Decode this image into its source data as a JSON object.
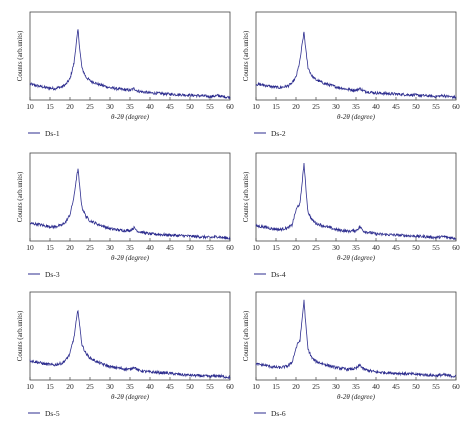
{
  "figure": {
    "colors": {
      "line": "#2e2e8f",
      "axis": "#444444"
    }
  },
  "chart_data": [
    {
      "type": "line",
      "panel": "Ds-1",
      "xlabel": "θ-2θ (degree)",
      "ylabel": "Counts (arb.units)",
      "xlim": [
        10,
        60
      ],
      "xticks": [
        10,
        15,
        20,
        25,
        30,
        35,
        40,
        45,
        50,
        55,
        60
      ],
      "series": [
        {
          "name": "Ds-1",
          "x": [
            10,
            12,
            14,
            16,
            18,
            19,
            20,
            20.5,
            21,
            21.5,
            22,
            22.5,
            23,
            24,
            25,
            27,
            30,
            33,
            35,
            36,
            37,
            40,
            44,
            48,
            52,
            55,
            57,
            58,
            60
          ],
          "y": [
            18,
            16,
            14,
            13,
            15,
            18,
            24,
            33,
            42,
            62,
            80,
            55,
            36,
            26,
            22,
            18,
            14,
            12,
            11,
            13,
            10,
            8,
            7,
            6,
            5,
            4,
            5,
            4,
            3
          ]
        }
      ]
    },
    {
      "type": "line",
      "panel": "Ds-2",
      "xlabel": "θ-2θ (degree)",
      "ylabel": "Counts (arb.units)",
      "xlim": [
        10,
        60
      ],
      "xticks": [
        10,
        15,
        20,
        25,
        30,
        35,
        40,
        45,
        50,
        55,
        60
      ],
      "series": [
        {
          "name": "Ds-2",
          "x": [
            10,
            12,
            14,
            16,
            18,
            19,
            20,
            20.5,
            21,
            21.5,
            22,
            22.5,
            23,
            24,
            25,
            27,
            30,
            33,
            35,
            36,
            37,
            40,
            44,
            48,
            52,
            55,
            57,
            58,
            60
          ],
          "y": [
            18,
            17,
            15,
            14,
            16,
            19,
            26,
            35,
            45,
            62,
            77,
            55,
            37,
            27,
            23,
            19,
            15,
            12,
            11,
            13,
            10,
            8,
            7,
            6,
            5,
            4,
            5,
            4,
            3
          ]
        }
      ]
    },
    {
      "type": "line",
      "panel": "Ds-3",
      "xlabel": "θ-2θ (degree)",
      "ylabel": "Counts (arb.units)",
      "xlim": [
        10,
        60
      ],
      "xticks": [
        10,
        15,
        20,
        25,
        30,
        35,
        40,
        45,
        50,
        55,
        60
      ],
      "series": [
        {
          "name": "Ds-3",
          "x": [
            10,
            12,
            14,
            16,
            18,
            19,
            20,
            20.5,
            21,
            21.5,
            22,
            22.5,
            23,
            24,
            25,
            27,
            30,
            33,
            35,
            36,
            37,
            40,
            44,
            48,
            52,
            55,
            57,
            58,
            60
          ],
          "y": [
            20,
            19,
            17,
            16,
            18,
            22,
            30,
            40,
            50,
            68,
            82,
            58,
            38,
            28,
            23,
            19,
            14,
            12,
            12,
            15,
            11,
            8,
            7,
            6,
            5,
            4,
            5,
            4,
            3
          ]
        }
      ]
    },
    {
      "type": "line",
      "panel": "Ds-4",
      "xlabel": "θ-2θ (degree)",
      "ylabel": "Counts (arb.units)",
      "xlim": [
        10,
        60
      ],
      "xticks": [
        10,
        15,
        20,
        25,
        30,
        35,
        40,
        45,
        50,
        55,
        60
      ],
      "series": [
        {
          "name": "Ds-4",
          "x": [
            10,
            12,
            14,
            16,
            18,
            19,
            20,
            20.5,
            21,
            21.5,
            22,
            22.5,
            23,
            24,
            25,
            27,
            30,
            33,
            35,
            36,
            37,
            40,
            44,
            48,
            52,
            55,
            57,
            58,
            60
          ],
          "y": [
            17,
            16,
            14,
            13,
            15,
            18,
            35,
            40,
            42,
            65,
            88,
            58,
            33,
            24,
            20,
            17,
            13,
            11,
            12,
            16,
            11,
            8,
            7,
            6,
            5,
            4,
            5,
            4,
            3
          ]
        }
      ]
    },
    {
      "type": "line",
      "panel": "Ds-5",
      "xlabel": "θ-2θ (degree)",
      "ylabel": "Counts (arb.units)",
      "xlim": [
        10,
        60
      ],
      "xticks": [
        10,
        15,
        20,
        25,
        30,
        35,
        40,
        45,
        50,
        55,
        60
      ],
      "series": [
        {
          "name": "Ds-5",
          "x": [
            10,
            12,
            14,
            16,
            18,
            19,
            20,
            20.5,
            21,
            21.5,
            22,
            22.5,
            23,
            24,
            25,
            27,
            30,
            33,
            35,
            36,
            37,
            40,
            44,
            48,
            52,
            55,
            57,
            58,
            60
          ],
          "y": [
            22,
            20,
            18,
            17,
            19,
            23,
            30,
            40,
            48,
            65,
            80,
            58,
            40,
            30,
            25,
            20,
            15,
            13,
            12,
            15,
            11,
            9,
            8,
            6,
            5,
            4,
            5,
            4,
            3
          ]
        }
      ]
    },
    {
      "type": "line",
      "panel": "Ds-6",
      "xlabel": "θ-2θ (degree)",
      "ylabel": "Counts (arb.units)",
      "xlim": [
        10,
        60
      ],
      "xticks": [
        10,
        15,
        20,
        25,
        30,
        35,
        40,
        45,
        50,
        55,
        60
      ],
      "series": [
        {
          "name": "Ds-6",
          "x": [
            10,
            12,
            14,
            16,
            18,
            19,
            20,
            20.5,
            21,
            21.5,
            22,
            22.5,
            23,
            24,
            25,
            27,
            30,
            33,
            35,
            36,
            37,
            40,
            44,
            48,
            52,
            55,
            57,
            58,
            60
          ],
          "y": [
            18,
            17,
            15,
            14,
            16,
            20,
            36,
            42,
            45,
            68,
            90,
            60,
            35,
            25,
            21,
            18,
            14,
            12,
            13,
            17,
            12,
            9,
            8,
            7,
            6,
            5,
            6,
            5,
            4
          ]
        }
      ]
    }
  ]
}
